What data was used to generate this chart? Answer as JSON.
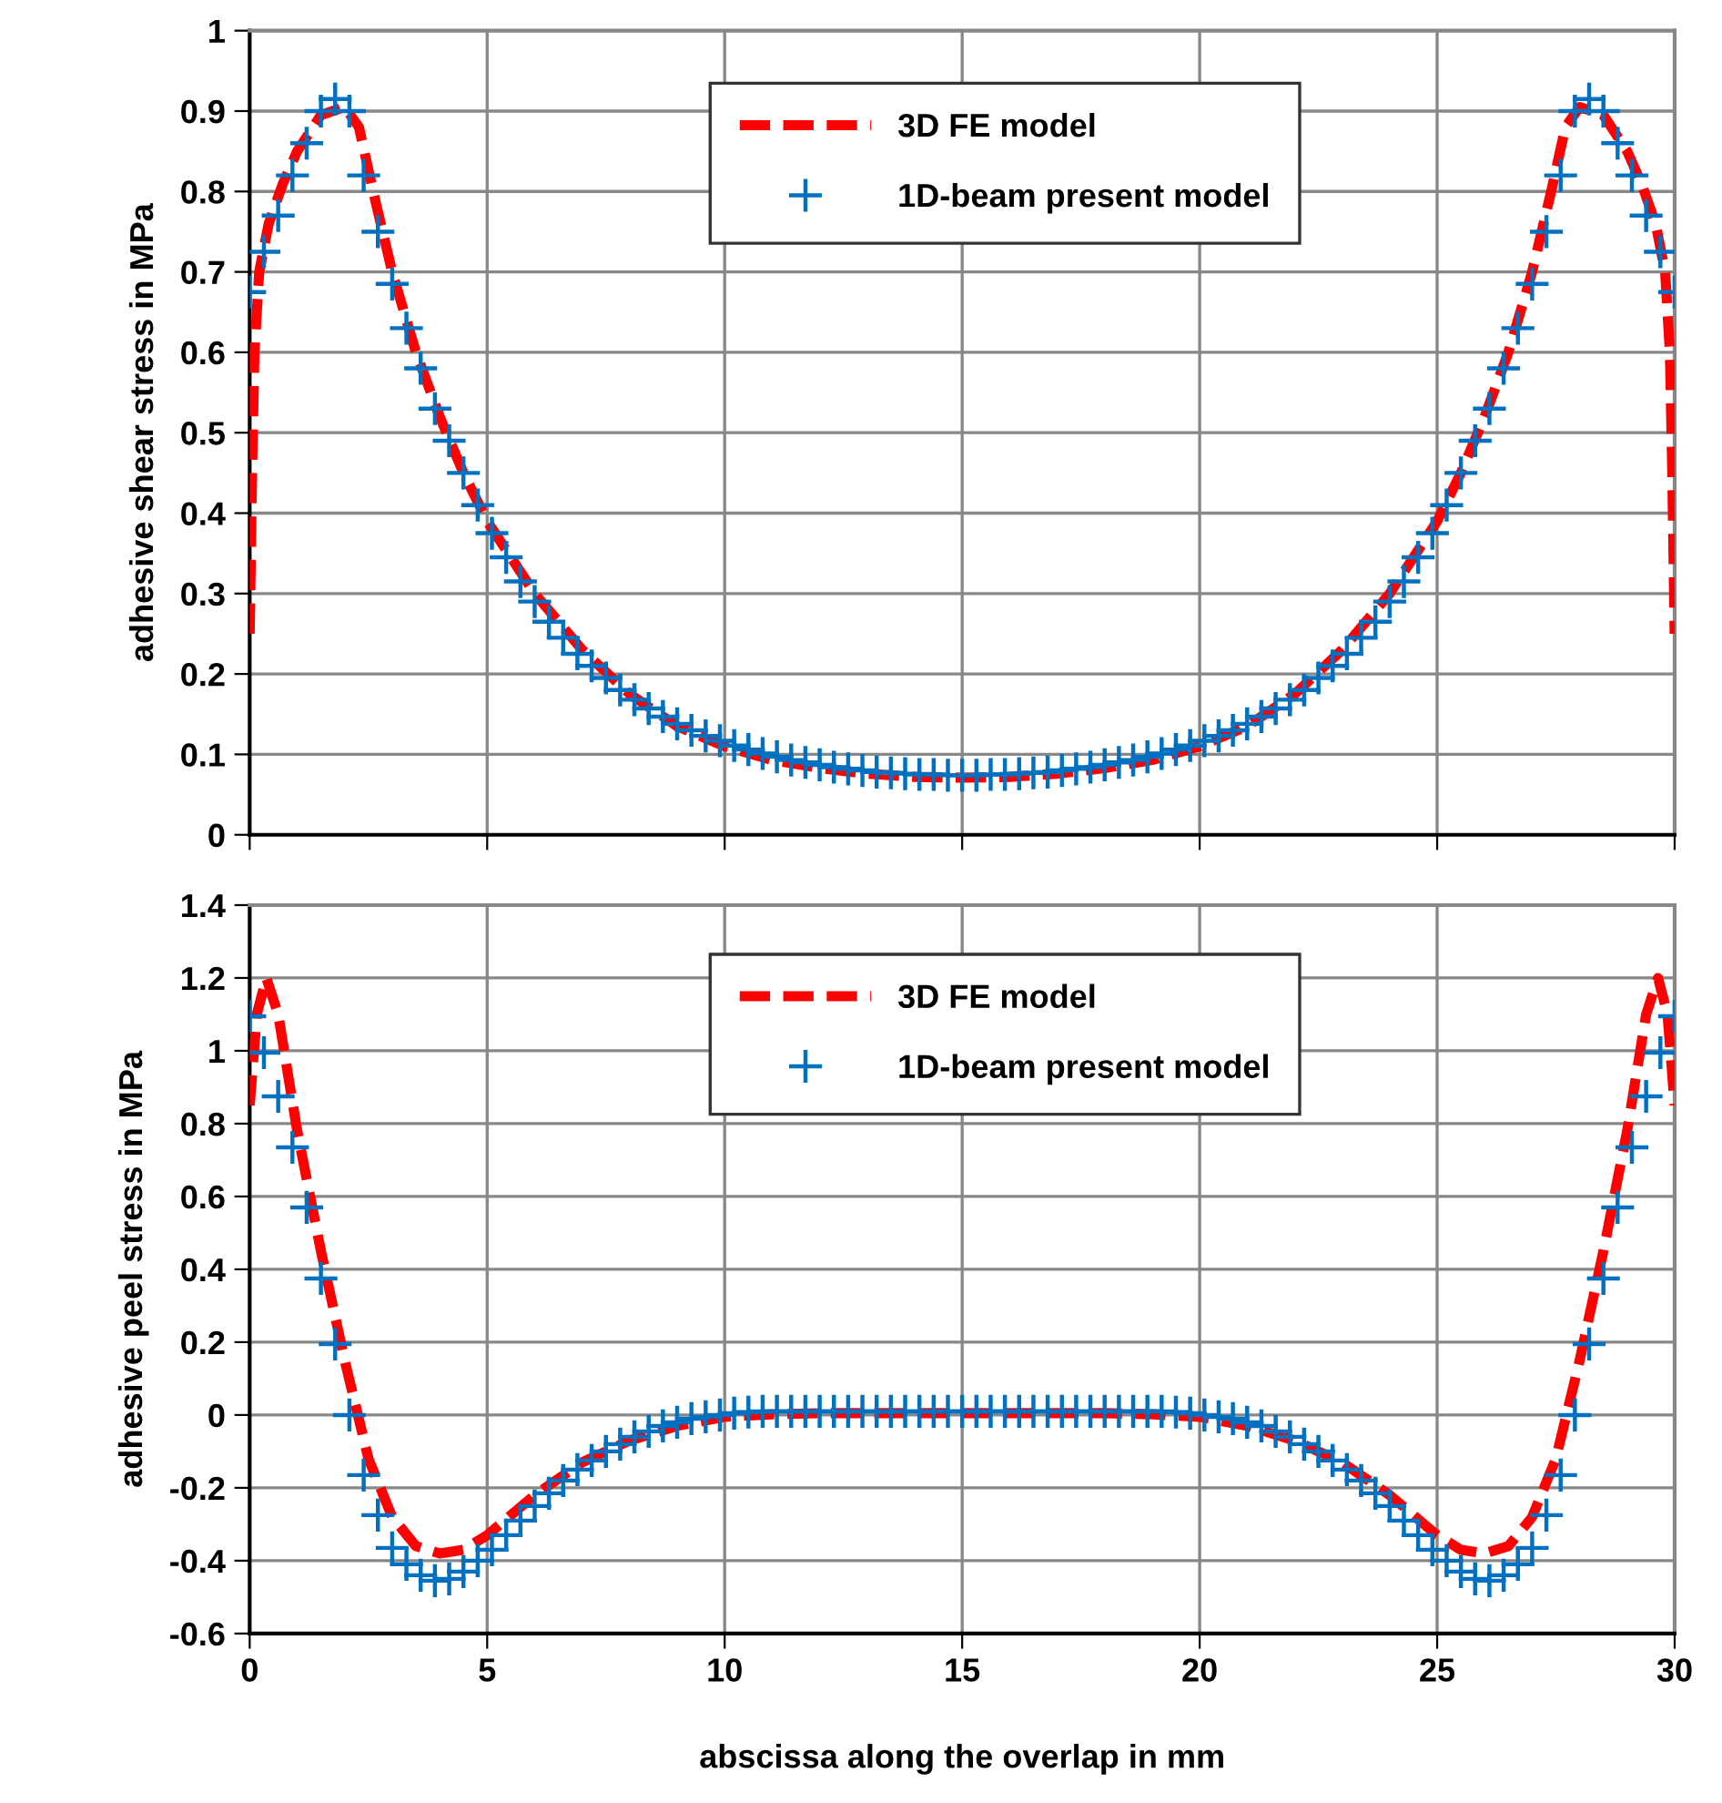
{
  "chart_data": [
    {
      "type": "line",
      "ylabel": "adhesive shear stress in MPa",
      "xlim": [
        0,
        30
      ],
      "xticks": [
        0,
        5,
        10,
        15,
        20,
        25,
        30
      ],
      "ylim": [
        0,
        1
      ],
      "yticks": [
        0,
        0.1,
        0.2,
        0.3,
        0.4,
        0.5,
        0.6,
        0.7,
        0.8,
        0.9,
        1
      ],
      "tick_labels": "y",
      "grid": true,
      "legend": "top",
      "series": [
        {
          "name": "3D FE model",
          "color": "#ff0000",
          "line_style": "dashed",
          "marker": "none",
          "x": [
            0,
            0.05,
            0.1,
            0.2,
            0.4,
            0.7,
            1,
            1.5,
            2,
            2.3,
            2.6,
            3,
            3.5,
            4,
            4.5,
            5,
            6,
            7,
            8,
            9,
            10,
            11,
            12,
            13,
            14,
            15,
            16,
            17,
            18,
            19,
            20,
            21,
            22,
            23,
            24,
            25,
            25.5,
            26,
            26.5,
            27,
            27.4,
            27.7,
            28,
            28.5,
            29,
            29.3,
            29.6,
            29.8,
            29.9,
            29.95,
            30
          ],
          "values": [
            0.25,
            0.45,
            0.6,
            0.7,
            0.76,
            0.81,
            0.85,
            0.895,
            0.905,
            0.88,
            0.8,
            0.7,
            0.6,
            0.52,
            0.45,
            0.39,
            0.3,
            0.23,
            0.175,
            0.135,
            0.11,
            0.093,
            0.083,
            0.076,
            0.072,
            0.071,
            0.072,
            0.076,
            0.083,
            0.093,
            0.11,
            0.135,
            0.175,
            0.23,
            0.3,
            0.39,
            0.45,
            0.52,
            0.6,
            0.7,
            0.8,
            0.88,
            0.905,
            0.895,
            0.85,
            0.81,
            0.76,
            0.7,
            0.6,
            0.45,
            0.25
          ]
        },
        {
          "name": "1D-beam present model",
          "type": "scatter",
          "color": "#0070c0",
          "marker": "cross",
          "x": [
            0,
            0.3,
            0.6,
            0.9,
            1.2,
            1.5,
            1.8,
            2.1,
            2.4,
            2.7,
            3,
            3.3,
            3.6,
            3.9,
            4.2,
            4.5,
            4.8,
            5.1,
            5.4,
            5.7,
            6,
            6.3,
            6.6,
            6.9,
            7.2,
            7.5,
            7.8,
            8.1,
            8.4,
            8.7,
            9,
            9.3,
            9.6,
            9.9,
            10.2,
            10.5,
            10.8,
            11.1,
            11.4,
            11.7,
            12,
            12.3,
            12.6,
            12.9,
            13.2,
            13.5,
            13.8,
            14.1,
            14.4,
            14.7,
            15,
            15.3,
            15.6,
            15.9,
            16.2,
            16.5,
            16.8,
            17.1,
            17.4,
            17.7,
            18,
            18.3,
            18.6,
            18.9,
            19.2,
            19.5,
            19.8,
            20.1,
            20.4,
            20.7,
            21,
            21.3,
            21.6,
            21.9,
            22.2,
            22.5,
            22.8,
            23.1,
            23.4,
            23.7,
            24,
            24.3,
            24.6,
            24.9,
            25.2,
            25.5,
            25.8,
            26.1,
            26.4,
            26.7,
            27,
            27.3,
            27.6,
            27.9,
            28.2,
            28.5,
            28.8,
            29.1,
            29.4,
            29.7,
            30
          ],
          "values": [
            0.675,
            0.725,
            0.77,
            0.82,
            0.86,
            0.9,
            0.915,
            0.9,
            0.82,
            0.75,
            0.685,
            0.63,
            0.58,
            0.53,
            0.49,
            0.45,
            0.41,
            0.375,
            0.345,
            0.315,
            0.29,
            0.265,
            0.245,
            0.225,
            0.21,
            0.195,
            0.18,
            0.168,
            0.157,
            0.147,
            0.138,
            0.13,
            0.123,
            0.117,
            0.111,
            0.106,
            0.101,
            0.097,
            0.093,
            0.09,
            0.087,
            0.084,
            0.082,
            0.08,
            0.078,
            0.077,
            0.076,
            0.075,
            0.075,
            0.074,
            0.074,
            0.074,
            0.075,
            0.075,
            0.076,
            0.077,
            0.078,
            0.08,
            0.082,
            0.084,
            0.087,
            0.09,
            0.093,
            0.097,
            0.101,
            0.106,
            0.111,
            0.117,
            0.123,
            0.13,
            0.138,
            0.147,
            0.157,
            0.168,
            0.18,
            0.195,
            0.21,
            0.225,
            0.245,
            0.265,
            0.29,
            0.315,
            0.345,
            0.375,
            0.41,
            0.45,
            0.49,
            0.53,
            0.58,
            0.63,
            0.685,
            0.75,
            0.82,
            0.9,
            0.915,
            0.9,
            0.86,
            0.82,
            0.77,
            0.725,
            0.675
          ]
        }
      ]
    },
    {
      "type": "line",
      "ylabel": "adhesive peel stress in MPa",
      "xlabel": "abscissa along the overlap in mm",
      "xlim": [
        0,
        30
      ],
      "xticks": [
        0,
        5,
        10,
        15,
        20,
        25,
        30
      ],
      "ylim": [
        -0.6,
        1.4
      ],
      "yticks": [
        -0.6,
        -0.4,
        -0.2,
        0,
        0.2,
        0.4,
        0.6,
        0.8,
        1,
        1.2,
        1.4
      ],
      "grid": true,
      "legend": "top",
      "series": [
        {
          "name": "3D FE model",
          "color": "#ff0000",
          "line_style": "dashed",
          "marker": "none",
          "x": [
            0,
            0.15,
            0.35,
            0.6,
            1,
            1.5,
            2,
            2.5,
            3,
            3.5,
            4,
            4.5,
            5,
            6,
            7,
            8,
            9,
            10,
            11,
            12,
            15,
            18,
            19,
            20,
            21,
            22,
            23,
            24,
            25,
            25.5,
            26,
            26.5,
            27,
            27.5,
            28,
            28.5,
            29,
            29.4,
            29.65,
            29.85,
            30
          ],
          "values": [
            0.85,
            1.1,
            1.2,
            1.1,
            0.78,
            0.45,
            0.15,
            -0.12,
            -0.28,
            -0.36,
            -0.38,
            -0.37,
            -0.33,
            -0.22,
            -0.13,
            -0.07,
            -0.03,
            -0.005,
            0.002,
            0.005,
            0.005,
            0.005,
            0.002,
            -0.005,
            -0.03,
            -0.07,
            -0.13,
            -0.22,
            -0.33,
            -0.37,
            -0.38,
            -0.36,
            -0.28,
            -0.12,
            0.15,
            0.45,
            0.78,
            1.1,
            1.2,
            1.1,
            0.85
          ]
        },
        {
          "name": "1D-beam present model",
          "type": "scatter",
          "color": "#0070c0",
          "marker": "cross",
          "x": [
            0,
            0.3,
            0.6,
            0.9,
            1.2,
            1.5,
            1.8,
            2.1,
            2.4,
            2.7,
            3,
            3.3,
            3.6,
            3.9,
            4.2,
            4.5,
            4.8,
            5.1,
            5.4,
            5.7,
            6,
            6.3,
            6.6,
            6.9,
            7.2,
            7.5,
            7.8,
            8.1,
            8.4,
            8.7,
            9,
            9.3,
            9.6,
            9.9,
            10.2,
            10.5,
            10.8,
            11.1,
            11.4,
            11.7,
            12,
            12.3,
            12.6,
            12.9,
            13.2,
            13.5,
            13.8,
            14.1,
            14.4,
            14.7,
            15,
            15.3,
            15.6,
            15.9,
            16.2,
            16.5,
            16.8,
            17.1,
            17.4,
            17.7,
            18,
            18.3,
            18.6,
            18.9,
            19.2,
            19.5,
            19.8,
            20.1,
            20.4,
            20.7,
            21,
            21.3,
            21.6,
            21.9,
            22.2,
            22.5,
            22.8,
            23.1,
            23.4,
            23.7,
            24,
            24.3,
            24.6,
            24.9,
            25.2,
            25.5,
            25.8,
            26.1,
            26.4,
            26.7,
            27,
            27.3,
            27.6,
            27.9,
            28.2,
            28.5,
            28.8,
            29.1,
            29.4,
            29.7,
            30
          ],
          "values": [
            1.095,
            0.995,
            0.875,
            0.735,
            0.57,
            0.375,
            0.195,
            0.0,
            -0.165,
            -0.275,
            -0.365,
            -0.41,
            -0.44,
            -0.455,
            -0.45,
            -0.43,
            -0.4,
            -0.37,
            -0.33,
            -0.29,
            -0.25,
            -0.215,
            -0.18,
            -0.15,
            -0.125,
            -0.1,
            -0.08,
            -0.06,
            -0.045,
            -0.03,
            -0.02,
            -0.01,
            -0.005,
            0.0,
            0.005,
            0.008,
            0.01,
            0.01,
            0.01,
            0.01,
            0.01,
            0.01,
            0.01,
            0.01,
            0.01,
            0.01,
            0.01,
            0.01,
            0.01,
            0.01,
            0.01,
            0.01,
            0.01,
            0.01,
            0.01,
            0.01,
            0.01,
            0.01,
            0.01,
            0.01,
            0.01,
            0.01,
            0.01,
            0.01,
            0.01,
            0.008,
            0.005,
            0.0,
            -0.005,
            -0.01,
            -0.02,
            -0.03,
            -0.045,
            -0.06,
            -0.08,
            -0.1,
            -0.125,
            -0.15,
            -0.18,
            -0.215,
            -0.25,
            -0.29,
            -0.33,
            -0.37,
            -0.4,
            -0.43,
            -0.45,
            -0.455,
            -0.44,
            -0.41,
            -0.365,
            -0.275,
            -0.165,
            0.0,
            0.195,
            0.375,
            0.57,
            0.735,
            0.875,
            0.995,
            1.095
          ]
        }
      ]
    }
  ]
}
